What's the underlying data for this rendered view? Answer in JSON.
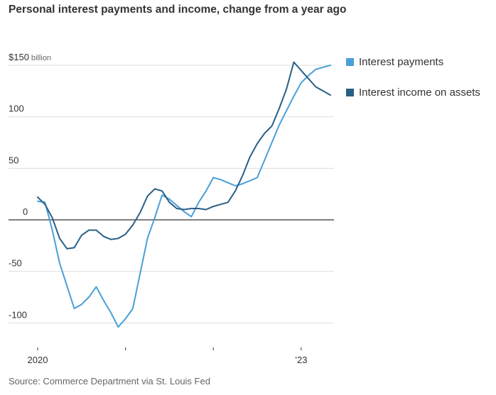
{
  "title": "Personal interest payments and income, change from a year ago",
  "source": "Source: Commerce Department via St. Louis Fed",
  "colors": {
    "interest_payments": "#4a9fd8",
    "interest_income": "#2a5f85",
    "grid": "#dddddd",
    "zero_line": "#333333",
    "text": "#333333"
  },
  "chart_data": {
    "type": "line",
    "title": "Personal interest payments and income, change from a year ago",
    "x_unit": "month",
    "xlim": [
      "2020-01",
      "2023-05"
    ],
    "ylim": [
      -120,
      160
    ],
    "y_ticks": [
      {
        "value": 150,
        "label": "$150",
        "unit_label": "billion"
      },
      {
        "value": 100,
        "label": "100"
      },
      {
        "value": 50,
        "label": "50"
      },
      {
        "value": 0,
        "label": "0"
      },
      {
        "value": -50,
        "label": "-50"
      },
      {
        "value": -100,
        "label": "-100"
      }
    ],
    "x_ticks": [
      {
        "x": "2020-01",
        "label": "2020"
      },
      {
        "x": "2021-01",
        "label": ""
      },
      {
        "x": "2022-01",
        "label": ""
      },
      {
        "x": "2023-01",
        "label": "’23"
      }
    ],
    "grid": true,
    "legend_position": "right",
    "series": [
      {
        "name": "Interest payments",
        "color": "#4a9fd8",
        "points": [
          {
            "x": "2020-01",
            "y": 18
          },
          {
            "x": "2020-02",
            "y": 17
          },
          {
            "x": "2020-03",
            "y": -10
          },
          {
            "x": "2020-04",
            "y": -42
          },
          {
            "x": "2020-05",
            "y": -64
          },
          {
            "x": "2020-06",
            "y": -86
          },
          {
            "x": "2020-07",
            "y": -82
          },
          {
            "x": "2020-08",
            "y": -75
          },
          {
            "x": "2020-09",
            "y": -65
          },
          {
            "x": "2020-10",
            "y": -78
          },
          {
            "x": "2020-11",
            "y": -90
          },
          {
            "x": "2020-12",
            "y": -104
          },
          {
            "x": "2021-01",
            "y": -96
          },
          {
            "x": "2021-02",
            "y": -86
          },
          {
            "x": "2021-03",
            "y": -52
          },
          {
            "x": "2021-04",
            "y": -18
          },
          {
            "x": "2021-05",
            "y": 2
          },
          {
            "x": "2021-06",
            "y": 24
          },
          {
            "x": "2021-07",
            "y": 20
          },
          {
            "x": "2021-08",
            "y": 14
          },
          {
            "x": "2021-09",
            "y": 8
          },
          {
            "x": "2021-10",
            "y": 3
          },
          {
            "x": "2021-11",
            "y": 17
          },
          {
            "x": "2021-12",
            "y": 28
          },
          {
            "x": "2022-01",
            "y": 41
          },
          {
            "x": "2022-02",
            "y": 39
          },
          {
            "x": "2022-03",
            "y": 36
          },
          {
            "x": "2022-04",
            "y": 33
          },
          {
            "x": "2022-05",
            "y": 35
          },
          {
            "x": "2022-06",
            "y": 38
          },
          {
            "x": "2022-07",
            "y": 41
          },
          {
            "x": "2022-08",
            "y": 58
          },
          {
            "x": "2022-09",
            "y": 75
          },
          {
            "x": "2022-10",
            "y": 92
          },
          {
            "x": "2022-11",
            "y": 106
          },
          {
            "x": "2022-12",
            "y": 120
          },
          {
            "x": "2023-01",
            "y": 133
          },
          {
            "x": "2023-02",
            "y": 140
          },
          {
            "x": "2023-03",
            "y": 146
          },
          {
            "x": "2023-04",
            "y": 148
          },
          {
            "x": "2023-05",
            "y": 150
          }
        ]
      },
      {
        "name": "Interest income on assets",
        "color": "#2a5f85",
        "points": [
          {
            "x": "2020-01",
            "y": 22
          },
          {
            "x": "2020-02",
            "y": 15
          },
          {
            "x": "2020-03",
            "y": 2
          },
          {
            "x": "2020-04",
            "y": -18
          },
          {
            "x": "2020-05",
            "y": -28
          },
          {
            "x": "2020-06",
            "y": -27
          },
          {
            "x": "2020-07",
            "y": -15
          },
          {
            "x": "2020-08",
            "y": -10
          },
          {
            "x": "2020-09",
            "y": -10
          },
          {
            "x": "2020-10",
            "y": -16
          },
          {
            "x": "2020-11",
            "y": -19
          },
          {
            "x": "2020-12",
            "y": -18
          },
          {
            "x": "2021-01",
            "y": -14
          },
          {
            "x": "2021-02",
            "y": -5
          },
          {
            "x": "2021-03",
            "y": 7
          },
          {
            "x": "2021-04",
            "y": 23
          },
          {
            "x": "2021-05",
            "y": 30
          },
          {
            "x": "2021-06",
            "y": 28
          },
          {
            "x": "2021-07",
            "y": 17
          },
          {
            "x": "2021-08",
            "y": 11
          },
          {
            "x": "2021-09",
            "y": 10
          },
          {
            "x": "2021-10",
            "y": 11
          },
          {
            "x": "2021-11",
            "y": 11
          },
          {
            "x": "2021-12",
            "y": 10
          },
          {
            "x": "2022-01",
            "y": 13
          },
          {
            "x": "2022-02",
            "y": 15
          },
          {
            "x": "2022-03",
            "y": 17
          },
          {
            "x": "2022-04",
            "y": 28
          },
          {
            "x": "2022-05",
            "y": 43
          },
          {
            "x": "2022-06",
            "y": 61
          },
          {
            "x": "2022-07",
            "y": 74
          },
          {
            "x": "2022-08",
            "y": 84
          },
          {
            "x": "2022-09",
            "y": 91
          },
          {
            "x": "2022-10",
            "y": 108
          },
          {
            "x": "2022-11",
            "y": 127
          },
          {
            "x": "2022-12",
            "y": 153
          },
          {
            "x": "2023-01",
            "y": 145
          },
          {
            "x": "2023-02",
            "y": 137
          },
          {
            "x": "2023-03",
            "y": 129
          },
          {
            "x": "2023-04",
            "y": 125
          },
          {
            "x": "2023-05",
            "y": 121
          }
        ]
      }
    ]
  }
}
